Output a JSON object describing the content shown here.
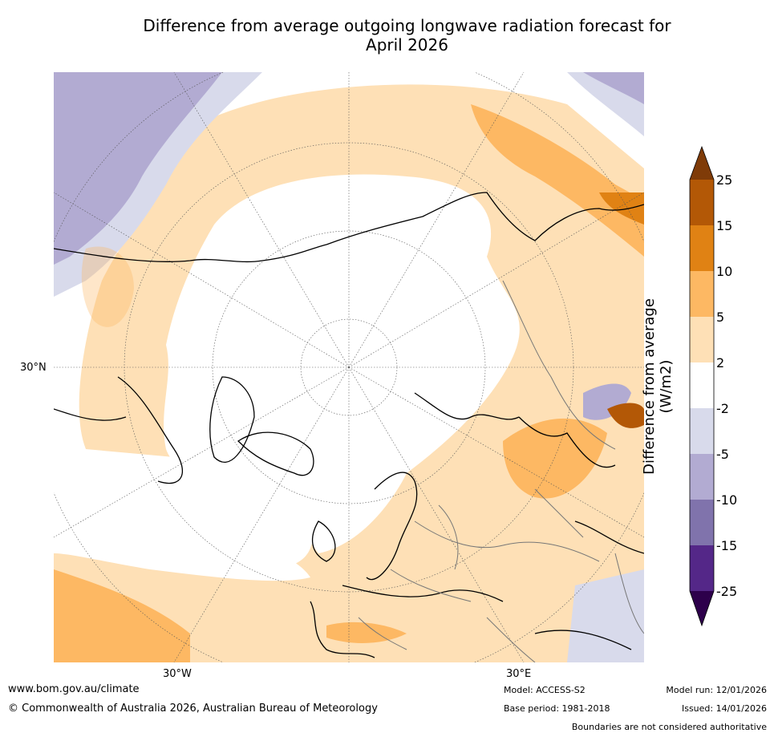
{
  "title_line1": "Difference from average outgoing longwave radiation forecast for",
  "title_line2": "April 2026",
  "map": {
    "lat_label": "30°N",
    "lon_left_label": "30°W",
    "lon_right_label": "30°E"
  },
  "colorbar": {
    "title": "Difference from average (W/m2)",
    "ticks": [
      "25",
      "15",
      "10",
      "5",
      "2",
      "-2",
      "-5",
      "-10",
      "-15",
      "-25"
    ],
    "colors": {
      "over": "#7f3b08",
      "b15_25": "#b35806",
      "b10_15": "#e08214",
      "b5_10": "#fdb863",
      "b2_5": "#fee0b6",
      "neutral": "#ffffff",
      "m2_5": "#d8daeb",
      "m5_10": "#b2abd2",
      "m10_15": "#8073ac",
      "m15_25": "#542788",
      "under": "#2d004b"
    }
  },
  "footer": {
    "website": "www.bom.gov.au/climate",
    "copyright": "© Commonwealth of Australia 2026, Australian Bureau of Meteorology",
    "model": "Model: ACCESS-S2",
    "base_period": "Base period: 1981-2018",
    "model_run": "Model run: 12/01/2026",
    "issued": "Issued: 14/01/2026",
    "disclaimer": "Boundaries are not considered authoritative"
  }
}
